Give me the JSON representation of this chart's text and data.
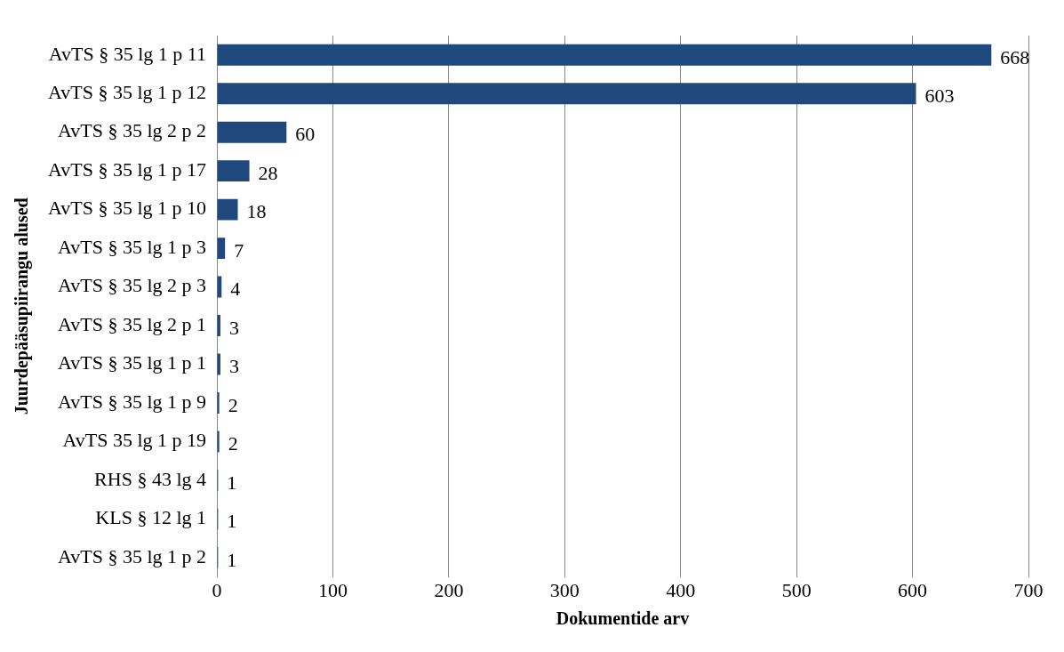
{
  "chart_data": {
    "type": "bar",
    "orientation": "horizontal",
    "xlabel": "Dokumentide arv",
    "ylabel": "Juurdepääsupiirangu alused",
    "categories": [
      "AvTS § 35 lg 1 p 11",
      "AvTS § 35 lg 1 p 12",
      "AvTS § 35 lg 2 p 2",
      "AvTS § 35 lg 1 p 17",
      "AvTS § 35 lg 1 p 10",
      "AvTS § 35 lg 1 p 3",
      "AvTS § 35 lg 2 p 3",
      "AvTS § 35 lg 2 p 1",
      "AvTS § 35 lg 1 p 1",
      "AvTS § 35 lg 1 p 9",
      "AvTS 35 lg 1 p 19",
      "RHS § 43 lg 4",
      "KLS § 12 lg 1",
      "AvTS § 35 lg 1 p 2"
    ],
    "values": [
      668,
      603,
      60,
      28,
      18,
      7,
      4,
      3,
      3,
      2,
      2,
      1,
      1,
      1
    ],
    "color": "#1f497d",
    "data_labels": true,
    "grid": "x",
    "legend": false,
    "xlim": [
      0,
      700
    ],
    "xticks": [
      0,
      100,
      200,
      300,
      400,
      500,
      600,
      700
    ]
  }
}
